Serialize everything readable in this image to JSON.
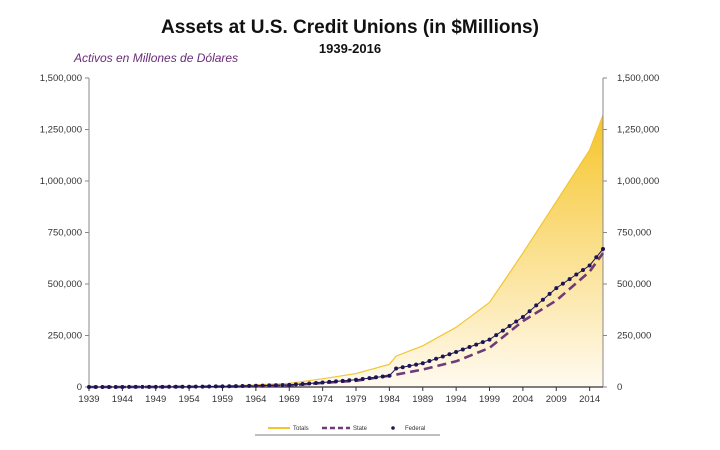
{
  "chart_data": {
    "type": "area",
    "title": "Assets at U.S. Credit Unions (in $Millions)",
    "subtitle": "1939-2016",
    "annotation": "Activos en Millones de Dólares",
    "xlim": [
      1939,
      2016
    ],
    "ylim": [
      0,
      1500000
    ],
    "x_ticks": [
      1939,
      1944,
      1949,
      1954,
      1959,
      1964,
      1969,
      1974,
      1979,
      1984,
      1989,
      1994,
      1999,
      2004,
      2009,
      2014
    ],
    "x_tick_labels": [
      "1939",
      "1944",
      "1949",
      "1954",
      "1959",
      "1964",
      "1969",
      "1974",
      "1979",
      "1984",
      "1989",
      "1994",
      "1999",
      "2004",
      "2009",
      "2014"
    ],
    "y_ticks": [
      0,
      250000,
      500000,
      750000,
      1000000,
      1250000,
      1500000
    ],
    "y_tick_labels": [
      "0",
      "250,000",
      "500,000",
      "750,000",
      "1,000,000",
      "1,250,000",
      "1,500,000"
    ],
    "x": [
      1939,
      1944,
      1949,
      1954,
      1959,
      1964,
      1969,
      1974,
      1979,
      1984,
      1985,
      1989,
      1994,
      1999,
      2004,
      2009,
      2014,
      2016
    ],
    "series": [
      {
        "name": "Totals",
        "style": "area",
        "color": "#f2c531",
        "values": [
          0,
          400,
          1000,
          2500,
          5000,
          10000,
          18000,
          40000,
          65000,
          110000,
          150000,
          200000,
          290000,
          410000,
          650000,
          900000,
          1150000,
          1320000
        ]
      },
      {
        "name": "State",
        "style": "dashed",
        "color": "#6e3b78",
        "values": [
          0,
          200,
          500,
          1000,
          2000,
          4000,
          8000,
          20000,
          30000,
          55000,
          60000,
          85000,
          125000,
          190000,
          320000,
          420000,
          560000,
          650000
        ]
      },
      {
        "name": "Federal",
        "style": "dotted-markers",
        "color": "#1c1454",
        "values": [
          0,
          200,
          500,
          1500,
          3000,
          6000,
          10000,
          22000,
          35000,
          55000,
          90000,
          115000,
          170000,
          230000,
          340000,
          480000,
          590000,
          670000
        ]
      }
    ],
    "legend": [
      "Totals",
      "State",
      "Federal"
    ],
    "legend_position": "bottom-center",
    "grid": false
  }
}
